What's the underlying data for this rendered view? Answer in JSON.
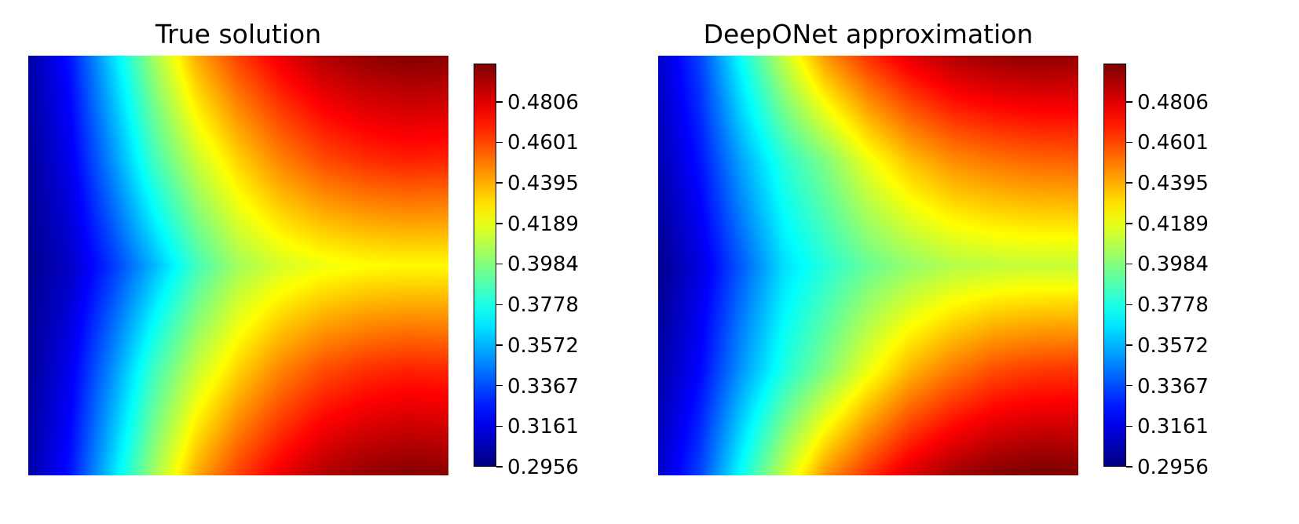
{
  "chart_data": [
    {
      "type": "heatmap",
      "title": "True solution",
      "colormap": "jet",
      "colorbar": {
        "ticks": [
          0.2956,
          0.3161,
          0.3367,
          0.3572,
          0.3778,
          0.3984,
          0.4189,
          0.4395,
          0.4601,
          0.4806
        ],
        "tick_labels": [
          "0.2956",
          "0.3161",
          "0.3367",
          "0.3572",
          "0.3778",
          "0.3984",
          "0.4189",
          "0.4395",
          "0.4601",
          "0.4806"
        ],
        "range": [
          0.2956,
          0.5
        ]
      },
      "axes_visible": false,
      "field": {
        "x": [
          0.0,
          0.1,
          0.2,
          0.3,
          0.4,
          0.5,
          0.6,
          0.7,
          0.8,
          0.9,
          1.0
        ],
        "y": [
          1.0,
          0.75,
          0.5,
          0.25,
          0.0
        ],
        "values": [
          [
            0.303,
            0.325,
            0.365,
            0.405,
            0.44,
            0.462,
            0.478,
            0.49,
            0.496,
            0.499,
            0.498
          ],
          [
            0.3,
            0.318,
            0.35,
            0.385,
            0.412,
            0.432,
            0.448,
            0.459,
            0.465,
            0.468,
            0.467
          ],
          [
            0.298,
            0.31,
            0.332,
            0.358,
            0.385,
            0.405,
            0.415,
            0.42,
            0.423,
            0.424,
            0.424
          ],
          [
            0.3,
            0.318,
            0.35,
            0.385,
            0.412,
            0.432,
            0.448,
            0.459,
            0.465,
            0.468,
            0.467
          ],
          [
            0.303,
            0.325,
            0.365,
            0.405,
            0.44,
            0.462,
            0.478,
            0.49,
            0.496,
            0.499,
            0.498
          ]
        ]
      }
    },
    {
      "type": "heatmap",
      "title": "DeepONet approximation",
      "colormap": "jet",
      "colorbar": {
        "ticks": [
          0.2956,
          0.3161,
          0.3367,
          0.3572,
          0.3778,
          0.3984,
          0.4189,
          0.4395,
          0.4601,
          0.4806
        ],
        "tick_labels": [
          "0.2956",
          "0.3161",
          "0.3367",
          "0.3572",
          "0.3778",
          "0.3984",
          "0.4189",
          "0.4395",
          "0.4601",
          "0.4806"
        ],
        "range": [
          0.2956,
          0.5
        ]
      },
      "axes_visible": false,
      "field": {
        "x": [
          0.0,
          0.1,
          0.2,
          0.3,
          0.4,
          0.5,
          0.6,
          0.7,
          0.8,
          0.9,
          1.0
        ],
        "y": [
          1.0,
          0.75,
          0.5,
          0.25,
          0.0
        ],
        "values": [
          [
            0.31,
            0.335,
            0.375,
            0.412,
            0.445,
            0.465,
            0.48,
            0.49,
            0.495,
            0.497,
            0.496
          ],
          [
            0.305,
            0.325,
            0.355,
            0.38,
            0.398,
            0.42,
            0.436,
            0.446,
            0.451,
            0.454,
            0.455
          ],
          [
            0.298,
            0.315,
            0.34,
            0.366,
            0.38,
            0.393,
            0.402,
            0.408,
            0.411,
            0.412,
            0.412
          ],
          [
            0.303,
            0.322,
            0.352,
            0.378,
            0.398,
            0.42,
            0.438,
            0.45,
            0.459,
            0.463,
            0.464
          ],
          [
            0.31,
            0.335,
            0.375,
            0.412,
            0.445,
            0.465,
            0.482,
            0.493,
            0.499,
            0.502,
            0.501
          ]
        ]
      }
    }
  ]
}
